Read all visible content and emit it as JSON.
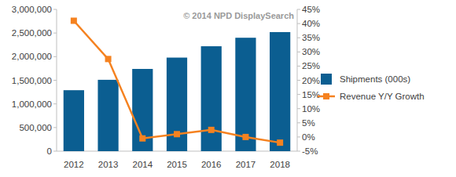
{
  "chart_data": {
    "type": "bar",
    "annotations": [
      "© 2014 NPD DisplaySearch"
    ],
    "categories": [
      "2012",
      "2013",
      "2014",
      "2015",
      "2016",
      "2017",
      "2018"
    ],
    "series": [
      {
        "name": "Shipments (000s)",
        "type": "bar",
        "color": "#0b5e91",
        "values": [
          1290000,
          1510000,
          1740000,
          1980000,
          2220000,
          2400000,
          2520000
        ]
      },
      {
        "name": "Revenue Y/Y Growth",
        "type": "line",
        "axis": "y2",
        "color": "#f58220",
        "marker": "square",
        "values": [
          41,
          27.5,
          -0.5,
          1,
          2.5,
          0,
          -2
        ]
      }
    ],
    "ylim": [
      0,
      3000000
    ],
    "yticks": [
      0,
      {
        "value": 500000,
        "label": "500,000"
      },
      {
        "value": 1000000,
        "label": "1,000,000"
      },
      {
        "value": 1500000,
        "label": "1,500,000"
      },
      {
        "value": 2000000,
        "label": "2,000,000"
      },
      {
        "value": 2500000,
        "label": "2,500,000"
      },
      {
        "value": 3000000,
        "label": "3,000,000"
      }
    ],
    "y2lim": [
      -5,
      45
    ],
    "y2ticks": [
      {
        "value": -5,
        "label": "-5%"
      },
      {
        "value": 0,
        "label": "0%"
      },
      {
        "value": 5,
        "label": "5%"
      },
      {
        "value": 10,
        "label": "10%"
      },
      {
        "value": 15,
        "label": "15%"
      },
      {
        "value": 20,
        "label": "20%"
      },
      {
        "value": 25,
        "label": "25%"
      },
      {
        "value": 30,
        "label": "30%"
      },
      {
        "value": 35,
        "label": "35%"
      },
      {
        "value": 40,
        "label": "40%"
      },
      {
        "value": 45,
        "label": "45%"
      }
    ],
    "grid": false,
    "legend": "right"
  }
}
